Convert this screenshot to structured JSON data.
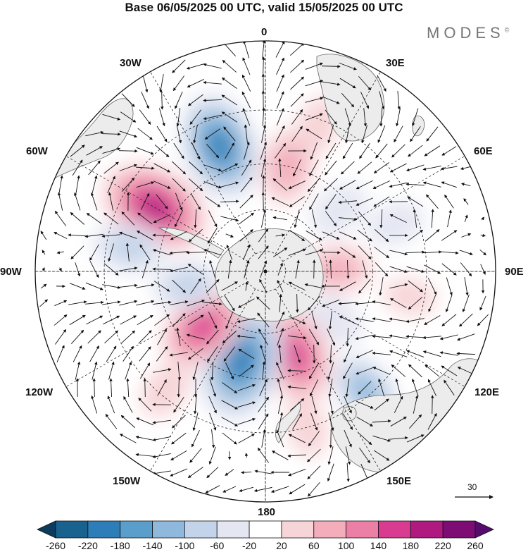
{
  "title": "Base 06/05/2025 00 UTC, valid 15/05/2025 00 UTC",
  "logo": "MODES",
  "logo_mark": "©",
  "longitude_labels": {
    "lon_0": "0",
    "lon_30e": "30E",
    "lon_60e": "60E",
    "lon_90e": "90E",
    "lon_120e": "120E",
    "lon_150e": "150E",
    "lon_180": "180",
    "lon_150w": "150W",
    "lon_120w": "120W",
    "lon_90w": "90W",
    "lon_60w": "60W",
    "lon_30w": "30W"
  },
  "vector_scale": {
    "value": "30"
  },
  "colorbar": {
    "labels": [
      "-260",
      "-220",
      "-180",
      "-140",
      "-100",
      "-60",
      "-20",
      "20",
      "60",
      "100",
      "140",
      "180",
      "220",
      "260"
    ],
    "colors": [
      "#0d3b5c",
      "#19618f",
      "#2c7db8",
      "#5a9ecc",
      "#8fb9dc",
      "#c3d4ea",
      "#e4e6f2",
      "#ffffff",
      "#f7d4d7",
      "#f3adbb",
      "#ec7fa6",
      "#d93b91",
      "#b01a80",
      "#7d0c75",
      "#560b6e"
    ]
  },
  "anomaly_centers": [
    {
      "lon": -20,
      "lat": -30,
      "value": -200
    },
    {
      "lon": -60,
      "lat": -32,
      "value": 210
    },
    {
      "lon": 12,
      "lat": -40,
      "value": 110
    },
    {
      "lon": 50,
      "lat": -45,
      "value": -70
    },
    {
      "lon": 88,
      "lat": -55,
      "value": 90
    },
    {
      "lon": 70,
      "lat": -28,
      "value": -60
    },
    {
      "lon": 125,
      "lat": -50,
      "value": -70
    },
    {
      "lon": 140,
      "lat": -22,
      "value": -120
    },
    {
      "lon": 160,
      "lat": -48,
      "value": 170
    },
    {
      "lon": -165,
      "lat": -46,
      "value": -230
    },
    {
      "lon": -132,
      "lat": -50,
      "value": 160
    },
    {
      "lon": -100,
      "lat": -52,
      "value": -90
    },
    {
      "lon": -80,
      "lat": -28,
      "value": -100
    },
    {
      "lon": -140,
      "lat": -22,
      "value": 60
    },
    {
      "lon": 165,
      "lat": -20,
      "value": 60
    },
    {
      "lon": 100,
      "lat": -25,
      "value": 40
    },
    {
      "lon": 20,
      "lat": -22,
      "value": 60
    }
  ]
}
